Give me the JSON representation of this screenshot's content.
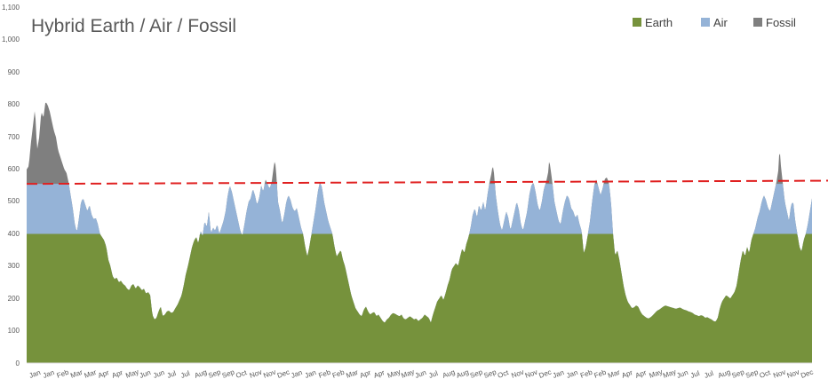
{
  "chart_data": {
    "type": "area",
    "title": "Hybrid Earth / Air / Fossil",
    "xlabel": "",
    "ylabel": "",
    "ylim": [
      0,
      1100
    ],
    "y_ticks": [
      "0",
      "100",
      "200",
      "300",
      "400",
      "500",
      "600",
      "700",
      "800",
      "900",
      "1,000",
      "1,100"
    ],
    "grid": false,
    "legend_position": "top-right",
    "legend": [
      {
        "name": "Earth",
        "color": "#76923c"
      },
      {
        "name": "Air",
        "color": "#95b3d7"
      },
      {
        "name": "Fossil",
        "color": "#7f7f7f"
      }
    ],
    "earth_cap": 400,
    "air_cap": 555,
    "threshold": {
      "start": 555,
      "end": 565,
      "color": "#e02020",
      "style": "dashed"
    },
    "x_tick_labels": [
      "Jan",
      "Jan",
      "Feb",
      "Mar",
      "Mar",
      "Apr",
      "Apr",
      "May",
      "Jun",
      "Jun",
      "Jul",
      "Jul",
      "Aug",
      "Sep",
      "Sep",
      "Oct",
      "Nov",
      "Nov",
      "Dec",
      "Jan",
      "Jan",
      "Feb",
      "Feb",
      "Mar",
      "Apr",
      "Apr",
      "May",
      "May",
      "Jun",
      "Jul",
      "Aug",
      "Aug",
      "Sep",
      "Sep",
      "Oct",
      "Nov",
      "Nov",
      "Dec",
      "Jan",
      "Jan",
      "Feb",
      "Feb",
      "Mar",
      "Apr",
      "Apr",
      "May",
      "May",
      "Jun",
      "Jul",
      "Jul",
      "Aug",
      "Sep",
      "Sep",
      "Oct",
      "Nov",
      "Nov",
      "Dec"
    ],
    "demand_keypoints": [
      [
        0,
        600
      ],
      [
        2,
        610
      ],
      [
        4,
        680
      ],
      [
        6,
        735
      ],
      [
        8,
        790
      ],
      [
        9,
        720
      ],
      [
        10,
        660
      ],
      [
        12,
        700
      ],
      [
        14,
        780
      ],
      [
        16,
        760
      ],
      [
        18,
        810
      ],
      [
        20,
        800
      ],
      [
        22,
        780
      ],
      [
        24,
        750
      ],
      [
        26,
        720
      ],
      [
        28,
        700
      ],
      [
        30,
        660
      ],
      [
        32,
        640
      ],
      [
        34,
        620
      ],
      [
        36,
        600
      ],
      [
        38,
        590
      ],
      [
        40,
        560
      ],
      [
        42,
        520
      ],
      [
        44,
        480
      ],
      [
        46,
        430
      ],
      [
        48,
        405
      ],
      [
        50,
        450
      ],
      [
        52,
        500
      ],
      [
        54,
        510
      ],
      [
        56,
        490
      ],
      [
        58,
        470
      ],
      [
        60,
        490
      ],
      [
        62,
        460
      ],
      [
        64,
        445
      ],
      [
        66,
        450
      ],
      [
        68,
        430
      ],
      [
        70,
        400
      ],
      [
        72,
        390
      ],
      [
        74,
        380
      ],
      [
        76,
        360
      ],
      [
        78,
        320
      ],
      [
        80,
        300
      ],
      [
        82,
        270
      ],
      [
        84,
        260
      ],
      [
        86,
        265
      ],
      [
        88,
        250
      ],
      [
        90,
        255
      ],
      [
        92,
        245
      ],
      [
        94,
        240
      ],
      [
        96,
        230
      ],
      [
        98,
        225
      ],
      [
        100,
        240
      ],
      [
        102,
        245
      ],
      [
        104,
        230
      ],
      [
        106,
        240
      ],
      [
        108,
        235
      ],
      [
        110,
        225
      ],
      [
        112,
        230
      ],
      [
        114,
        215
      ],
      [
        116,
        220
      ],
      [
        118,
        210
      ],
      [
        120,
        150
      ],
      [
        122,
        135
      ],
      [
        124,
        140
      ],
      [
        126,
        160
      ],
      [
        128,
        175
      ],
      [
        130,
        145
      ],
      [
        132,
        150
      ],
      [
        134,
        160
      ],
      [
        136,
        162
      ],
      [
        138,
        155
      ],
      [
        140,
        158
      ],
      [
        142,
        170
      ],
      [
        144,
        180
      ],
      [
        146,
        195
      ],
      [
        148,
        210
      ],
      [
        150,
        240
      ],
      [
        152,
        275
      ],
      [
        154,
        300
      ],
      [
        156,
        330
      ],
      [
        158,
        360
      ],
      [
        160,
        380
      ],
      [
        162,
        390
      ],
      [
        164,
        370
      ],
      [
        166,
        410
      ],
      [
        168,
        395
      ],
      [
        170,
        440
      ],
      [
        172,
        420
      ],
      [
        174,
        470
      ],
      [
        176,
        400
      ],
      [
        178,
        420
      ],
      [
        180,
        410
      ],
      [
        182,
        430
      ],
      [
        184,
        400
      ],
      [
        186,
        420
      ],
      [
        188,
        440
      ],
      [
        190,
        470
      ],
      [
        192,
        520
      ],
      [
        194,
        550
      ],
      [
        196,
        530
      ],
      [
        198,
        500
      ],
      [
        200,
        470
      ],
      [
        202,
        440
      ],
      [
        204,
        410
      ],
      [
        206,
        395
      ],
      [
        208,
        430
      ],
      [
        210,
        470
      ],
      [
        212,
        500
      ],
      [
        214,
        510
      ],
      [
        216,
        540
      ],
      [
        218,
        520
      ],
      [
        220,
        490
      ],
      [
        222,
        510
      ],
      [
        224,
        550
      ],
      [
        226,
        530
      ],
      [
        228,
        570
      ],
      [
        230,
        555
      ],
      [
        232,
        540
      ],
      [
        234,
        560
      ],
      [
        236,
        610
      ],
      [
        237,
        628
      ],
      [
        238,
        605
      ],
      [
        240,
        500
      ],
      [
        242,
        470
      ],
      [
        244,
        430
      ],
      [
        246,
        460
      ],
      [
        248,
        500
      ],
      [
        250,
        520
      ],
      [
        252,
        505
      ],
      [
        254,
        480
      ],
      [
        256,
        470
      ],
      [
        258,
        480
      ],
      [
        260,
        450
      ],
      [
        262,
        420
      ],
      [
        264,
        400
      ],
      [
        266,
        360
      ],
      [
        268,
        330
      ],
      [
        270,
        360
      ],
      [
        272,
        400
      ],
      [
        274,
        440
      ],
      [
        276,
        480
      ],
      [
        278,
        530
      ],
      [
        280,
        560
      ],
      [
        282,
        545
      ],
      [
        284,
        500
      ],
      [
        286,
        470
      ],
      [
        288,
        440
      ],
      [
        290,
        420
      ],
      [
        292,
        400
      ],
      [
        294,
        360
      ],
      [
        296,
        330
      ],
      [
        298,
        340
      ],
      [
        300,
        350
      ],
      [
        302,
        320
      ],
      [
        304,
        300
      ],
      [
        306,
        270
      ],
      [
        308,
        240
      ],
      [
        310,
        210
      ],
      [
        312,
        190
      ],
      [
        314,
        170
      ],
      [
        316,
        160
      ],
      [
        318,
        150
      ],
      [
        320,
        145
      ],
      [
        322,
        165
      ],
      [
        324,
        175
      ],
      [
        326,
        160
      ],
      [
        328,
        150
      ],
      [
        330,
        155
      ],
      [
        332,
        158
      ],
      [
        334,
        145
      ],
      [
        336,
        150
      ],
      [
        338,
        140
      ],
      [
        340,
        130
      ],
      [
        342,
        125
      ],
      [
        344,
        135
      ],
      [
        346,
        140
      ],
      [
        348,
        150
      ],
      [
        350,
        155
      ],
      [
        352,
        152
      ],
      [
        354,
        148
      ],
      [
        356,
        145
      ],
      [
        358,
        150
      ],
      [
        360,
        138
      ],
      [
        362,
        135
      ],
      [
        364,
        140
      ],
      [
        366,
        145
      ],
      [
        368,
        140
      ],
      [
        370,
        135
      ],
      [
        372,
        138
      ],
      [
        374,
        130
      ],
      [
        376,
        135
      ],
      [
        378,
        140
      ],
      [
        380,
        150
      ],
      [
        382,
        145
      ],
      [
        384,
        140
      ],
      [
        386,
        125
      ],
      [
        388,
        150
      ],
      [
        390,
        170
      ],
      [
        392,
        190
      ],
      [
        394,
        200
      ],
      [
        396,
        210
      ],
      [
        398,
        195
      ],
      [
        400,
        215
      ],
      [
        402,
        240
      ],
      [
        404,
        260
      ],
      [
        406,
        290
      ],
      [
        408,
        300
      ],
      [
        410,
        310
      ],
      [
        412,
        300
      ],
      [
        414,
        330
      ],
      [
        416,
        355
      ],
      [
        418,
        340
      ],
      [
        420,
        370
      ],
      [
        422,
        390
      ],
      [
        424,
        420
      ],
      [
        426,
        460
      ],
      [
        428,
        480
      ],
      [
        430,
        450
      ],
      [
        432,
        490
      ],
      [
        434,
        470
      ],
      [
        436,
        500
      ],
      [
        438,
        470
      ],
      [
        440,
        520
      ],
      [
        442,
        560
      ],
      [
        444,
        590
      ],
      [
        445,
        612
      ],
      [
        446,
        600
      ],
      [
        448,
        520
      ],
      [
        450,
        470
      ],
      [
        452,
        430
      ],
      [
        454,
        410
      ],
      [
        456,
        440
      ],
      [
        458,
        470
      ],
      [
        460,
        450
      ],
      [
        462,
        410
      ],
      [
        464,
        440
      ],
      [
        466,
        470
      ],
      [
        468,
        500
      ],
      [
        470,
        475
      ],
      [
        472,
        430
      ],
      [
        474,
        410
      ],
      [
        476,
        440
      ],
      [
        478,
        470
      ],
      [
        480,
        520
      ],
      [
        482,
        550
      ],
      [
        484,
        560
      ],
      [
        486,
        530
      ],
      [
        488,
        490
      ],
      [
        490,
        470
      ],
      [
        492,
        500
      ],
      [
        494,
        540
      ],
      [
        496,
        560
      ],
      [
        498,
        590
      ],
      [
        499,
        628
      ],
      [
        500,
        610
      ],
      [
        502,
        560
      ],
      [
        504,
        500
      ],
      [
        506,
        470
      ],
      [
        508,
        440
      ],
      [
        510,
        430
      ],
      [
        512,
        470
      ],
      [
        514,
        500
      ],
      [
        516,
        520
      ],
      [
        518,
        510
      ],
      [
        520,
        480
      ],
      [
        522,
        470
      ],
      [
        524,
        450
      ],
      [
        526,
        460
      ],
      [
        528,
        430
      ],
      [
        530,
        410
      ],
      [
        532,
        340
      ],
      [
        534,
        360
      ],
      [
        536,
        400
      ],
      [
        538,
        440
      ],
      [
        540,
        500
      ],
      [
        542,
        550
      ],
      [
        544,
        570
      ],
      [
        546,
        545
      ],
      [
        548,
        520
      ],
      [
        550,
        540
      ],
      [
        552,
        570
      ],
      [
        554,
        575
      ],
      [
        556,
        560
      ],
      [
        558,
        500
      ],
      [
        560,
        400
      ],
      [
        562,
        330
      ],
      [
        564,
        350
      ],
      [
        566,
        320
      ],
      [
        568,
        280
      ],
      [
        570,
        240
      ],
      [
        572,
        210
      ],
      [
        574,
        190
      ],
      [
        576,
        180
      ],
      [
        578,
        170
      ],
      [
        580,
        172
      ],
      [
        582,
        178
      ],
      [
        584,
        175
      ],
      [
        586,
        160
      ],
      [
        588,
        150
      ],
      [
        590,
        145
      ],
      [
        592,
        140
      ],
      [
        594,
        138
      ],
      [
        596,
        142
      ],
      [
        598,
        148
      ],
      [
        600,
        155
      ],
      [
        602,
        162
      ],
      [
        604,
        165
      ],
      [
        606,
        170
      ],
      [
        608,
        175
      ],
      [
        610,
        178
      ],
      [
        612,
        176
      ],
      [
        614,
        174
      ],
      [
        616,
        172
      ],
      [
        618,
        170
      ],
      [
        620,
        168
      ],
      [
        622,
        170
      ],
      [
        624,
        172
      ],
      [
        626,
        168
      ],
      [
        628,
        165
      ],
      [
        630,
        163
      ],
      [
        632,
        160
      ],
      [
        634,
        158
      ],
      [
        636,
        155
      ],
      [
        638,
        150
      ],
      [
        640,
        148
      ],
      [
        642,
        145
      ],
      [
        644,
        148
      ],
      [
        646,
        146
      ],
      [
        648,
        140
      ],
      [
        650,
        142
      ],
      [
        652,
        138
      ],
      [
        654,
        135
      ],
      [
        656,
        130
      ],
      [
        658,
        128
      ],
      [
        660,
        140
      ],
      [
        662,
        170
      ],
      [
        664,
        190
      ],
      [
        666,
        200
      ],
      [
        668,
        210
      ],
      [
        670,
        205
      ],
      [
        672,
        200
      ],
      [
        674,
        210
      ],
      [
        676,
        220
      ],
      [
        678,
        240
      ],
      [
        680,
        280
      ],
      [
        682,
        320
      ],
      [
        684,
        350
      ],
      [
        686,
        330
      ],
      [
        688,
        360
      ],
      [
        690,
        340
      ],
      [
        692,
        380
      ],
      [
        694,
        400
      ],
      [
        696,
        420
      ],
      [
        698,
        450
      ],
      [
        700,
        470
      ],
      [
        702,
        500
      ],
      [
        704,
        520
      ],
      [
        706,
        505
      ],
      [
        708,
        480
      ],
      [
        710,
        470
      ],
      [
        712,
        500
      ],
      [
        714,
        530
      ],
      [
        716,
        560
      ],
      [
        718,
        600
      ],
      [
        719,
        672
      ],
      [
        720,
        620
      ],
      [
        722,
        560
      ],
      [
        724,
        500
      ],
      [
        726,
        470
      ],
      [
        728,
        440
      ],
      [
        730,
        490
      ],
      [
        732,
        500
      ],
      [
        734,
        440
      ],
      [
        736,
        400
      ],
      [
        738,
        360
      ],
      [
        740,
        345
      ],
      [
        742,
        380
      ],
      [
        744,
        400
      ],
      [
        746,
        430
      ],
      [
        748,
        470
      ],
      [
        750,
        510
      ]
    ]
  }
}
